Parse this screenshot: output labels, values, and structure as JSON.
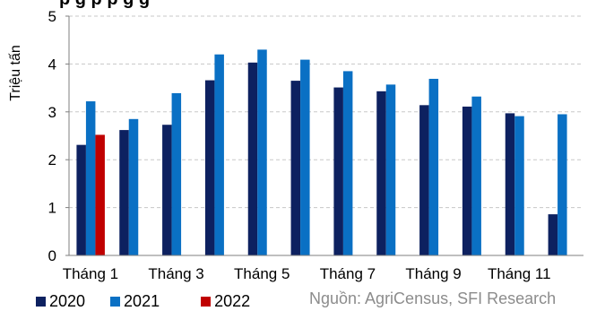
{
  "title_fragment": "p g p    p        g  g ",
  "chart_data": {
    "type": "bar",
    "categories": [
      "Tháng 1",
      "Tháng 2",
      "Tháng 3",
      "Tháng 4",
      "Tháng 5",
      "Tháng 6",
      "Tháng 7",
      "Tháng 8",
      "Tháng 9",
      "Tháng 10",
      "Tháng 11",
      "Tháng 12"
    ],
    "x_tick_labels": [
      "Tháng 1",
      "Tháng 3",
      "Tháng 5",
      "Tháng 7",
      "Tháng 9",
      "Tháng 11"
    ],
    "series": [
      {
        "name": "2020",
        "color": "#0d2160",
        "values": [
          2.31,
          2.62,
          2.73,
          3.66,
          4.03,
          3.65,
          3.51,
          3.43,
          3.14,
          3.11,
          2.97,
          0.86
        ]
      },
      {
        "name": "2021",
        "color": "#0a70c4",
        "values": [
          3.22,
          2.85,
          3.39,
          4.2,
          4.3,
          4.09,
          3.85,
          3.57,
          3.69,
          3.32,
          2.91,
          2.95
        ]
      },
      {
        "name": "2022",
        "color": "#c00000",
        "values": [
          2.52,
          null,
          null,
          null,
          null,
          null,
          null,
          null,
          null,
          null,
          null,
          null
        ]
      }
    ],
    "ylabel": "Triệu tấn",
    "ylim": [
      0,
      5
    ],
    "yticks": [
      0,
      1,
      2,
      3,
      4,
      5
    ],
    "grid": true,
    "legend_position": "bottom-left"
  },
  "source": "Nguồn: AgriCensus, SFI Research"
}
